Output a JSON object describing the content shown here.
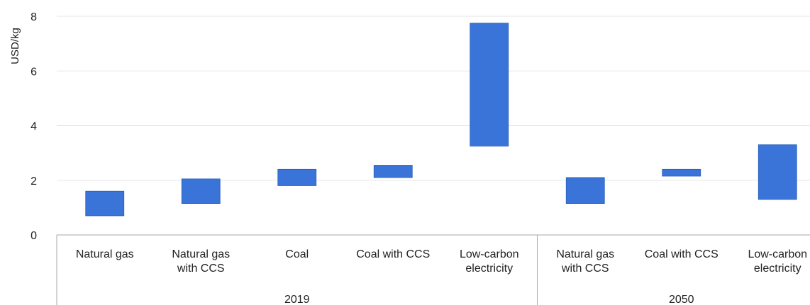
{
  "chart_data": {
    "type": "bar",
    "subtype": "floating-range",
    "ylabel": "USD/kg",
    "ylim": [
      0,
      8
    ],
    "yticks": [
      0,
      2,
      4,
      6,
      8
    ],
    "grid": true,
    "colors": {
      "bar": "#3a74d9",
      "bar_stroke": "#2a5fb8",
      "grid": "#e6e6e6",
      "axis": "#aaaaaa"
    },
    "groups": [
      {
        "label": "2019",
        "categories": [
          "Natural gas",
          "Natural gas with CCS",
          "Coal",
          "Coal with CCS",
          "Low-carbon electricity"
        ],
        "ranges": [
          [
            0.7,
            1.6
          ],
          [
            1.15,
            2.05
          ],
          [
            1.8,
            2.4
          ],
          [
            2.1,
            2.55
          ],
          [
            3.25,
            7.75
          ]
        ]
      },
      {
        "label": "2050",
        "categories": [
          "Natural gas with CCS",
          "Coal with CCS",
          "Low-carbon electricity"
        ],
        "ranges": [
          [
            1.15,
            2.1
          ],
          [
            2.15,
            2.4
          ],
          [
            1.3,
            3.3
          ]
        ]
      }
    ]
  }
}
